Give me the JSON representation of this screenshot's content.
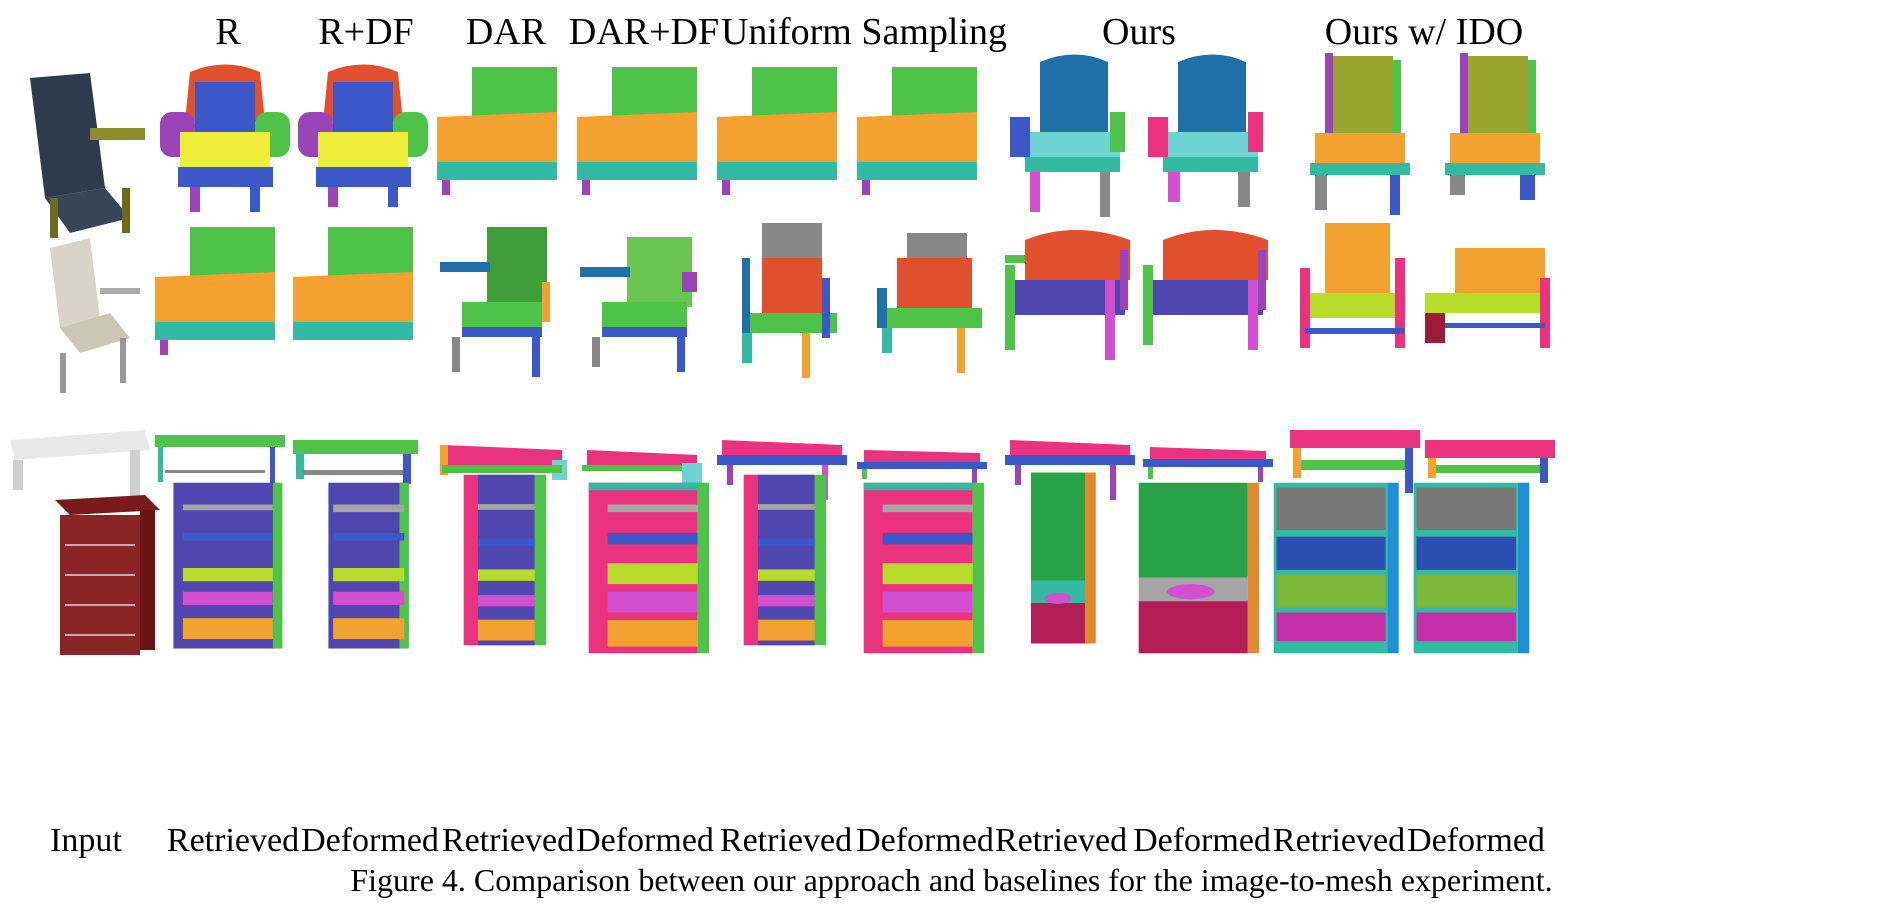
{
  "figure": {
    "column_headers": [
      "R",
      "R+DF",
      "DAR",
      "DAR+DF",
      "Uniform Sampling",
      "Ours",
      "Ours w/ IDO"
    ],
    "sub_labels": [
      "Input",
      "Retrieved",
      "Deformed",
      "Retrieved",
      "Deformed",
      "Retrieved",
      "Deformed",
      "Retrieved",
      "Deformed",
      "Retrieved",
      "Deformed"
    ],
    "caption": "Figure 4. Comparison between our approach and baselines for the image-to-mesh experiment.",
    "rows": [
      "armchair",
      "lounge-chair",
      "coffee-table",
      "cabinet"
    ],
    "colors": {
      "green": "#4fc24a",
      "orange": "#f3a232",
      "teal": "#34b9a3",
      "yellow": "#eded3a",
      "blue": "#3b57c8",
      "purple": "#9b44b8",
      "red": "#e0502f",
      "pink": "#e9337f",
      "gray": "#888888",
      "darkblue": "#1f6fa8",
      "cyan": "#6fd3d3",
      "olive": "#9aa530",
      "lime": "#b7dc2b",
      "magenta": "#d14fd0",
      "maroon": "#9b1b3a"
    }
  }
}
